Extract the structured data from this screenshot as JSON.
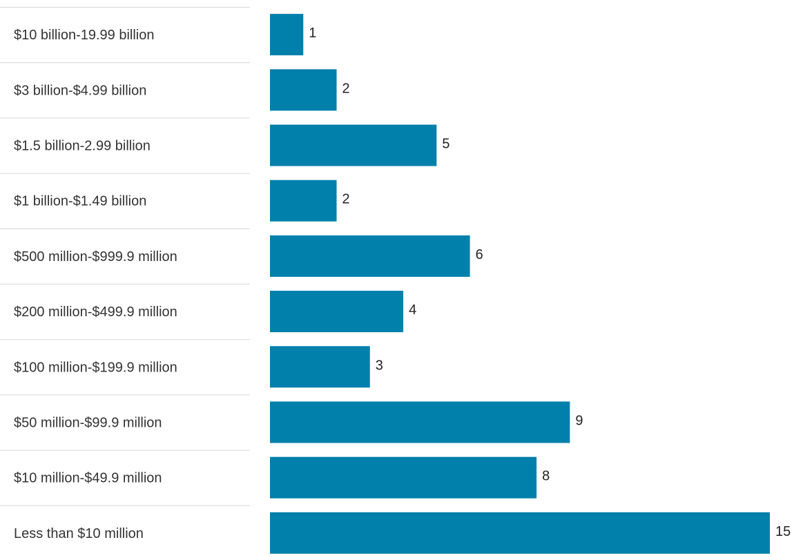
{
  "chart_data": {
    "type": "bar",
    "orientation": "horizontal",
    "categories": [
      "$10 billion-19.99 billion",
      "$3 billion-$4.99 billion",
      "$1.5 billion-2.99 billion",
      "$1 billion-$1.49 billion",
      "$500 million-$999.9 million",
      "$200 million-$499.9 million",
      "$100 million-$199.9 million",
      "$50 million-$99.9 million",
      "$10 million-$49.9 million",
      "Less than $10 million"
    ],
    "values": [
      1,
      2,
      5,
      2,
      6,
      4,
      3,
      9,
      8,
      15
    ],
    "value_labels": [
      "1",
      "2",
      "5",
      "2",
      "6",
      "4",
      "3",
      "9",
      "8",
      "15"
    ],
    "title": "",
    "xlabel": "",
    "ylabel": "",
    "xlim": [
      0,
      15
    ],
    "grid": false,
    "legend": "none",
    "bar_color": "#0080ab"
  }
}
